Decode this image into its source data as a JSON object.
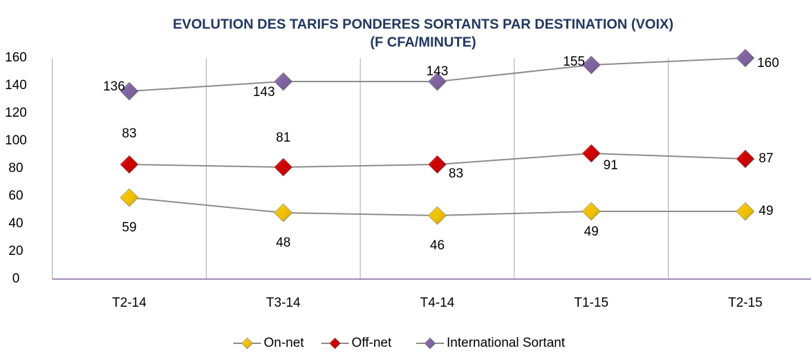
{
  "chart_data": {
    "type": "line",
    "title": [
      "EVOLUTION DES TARIFS PONDERES SORTANTS PAR DESTINATION (VOIX)",
      "(F CFA/MINUTE)"
    ],
    "categories": [
      "T2-14",
      "T3-14",
      "T4-14",
      "T1-15",
      "T2-15"
    ],
    "series": [
      {
        "name": "On-net",
        "color": "#f2c200",
        "values": [
          59,
          48,
          46,
          49,
          49
        ]
      },
      {
        "name": "Off-net",
        "color": "#d00000",
        "values": [
          83,
          81,
          83,
          91,
          87
        ]
      },
      {
        "name": "International Sortant",
        "color": "#8064a2",
        "values": [
          136,
          143,
          143,
          155,
          160
        ]
      }
    ],
    "ylim": [
      0,
      160
    ],
    "yticks": [
      0,
      20,
      40,
      60,
      80,
      100,
      120,
      140,
      160
    ],
    "grid": false,
    "legend": "bottom"
  }
}
